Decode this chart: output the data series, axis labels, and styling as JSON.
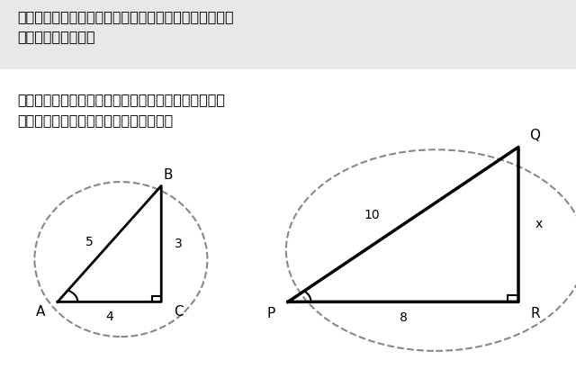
{
  "background_color": "#ffffff",
  "text1": "実は、この比の値は、相似の関係から辺の長さを求める\nときに使っていた。",
  "text2": "下図のような相似の関係にある直角三角形において、\n辺ＰＱの長さｘを求めるときを考える。",
  "text_bg_color": "#e8e8e8",
  "fig_width": 6.4,
  "fig_height": 4.3,
  "tri1": {
    "A": [
      0.1,
      0.22
    ],
    "B": [
      0.28,
      0.52
    ],
    "C": [
      0.28,
      0.22
    ],
    "label_A": "A",
    "label_B": "B",
    "label_C": "C",
    "side_AB": "5",
    "side_BC": "3",
    "side_AC": "4"
  },
  "tri2": {
    "P": [
      0.5,
      0.22
    ],
    "Q": [
      0.9,
      0.62
    ],
    "R": [
      0.9,
      0.22
    ],
    "label_P": "P",
    "label_Q": "Q",
    "label_R": "R",
    "side_PQ": "10",
    "side_QR": "x",
    "side_PR": "8"
  },
  "line_color": "#000000",
  "dashed_color": "#888888",
  "font_size_text": 11.5,
  "font_size_label": 11,
  "font_size_number": 10
}
